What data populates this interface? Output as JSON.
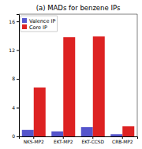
{
  "chart_data": {
    "type": "bar",
    "title": "(a) MADs for benzene IPs",
    "categories": [
      "NKS-MP2",
      "EKT-MP2",
      "EKT-CCSD",
      "CRB-MP2"
    ],
    "series": [
      {
        "name": "Valence IP",
        "color": "#5555cc",
        "values": [
          0.9,
          0.7,
          1.3,
          0.3
        ]
      },
      {
        "name": "Core IP",
        "color": "#dd2222",
        "values": [
          6.8,
          13.8,
          13.9,
          1.4
        ]
      }
    ],
    "ylim": [
      0,
      17
    ],
    "yticks": [
      0,
      4,
      8,
      12,
      16
    ],
    "grid": false,
    "legend": "upper-left"
  }
}
